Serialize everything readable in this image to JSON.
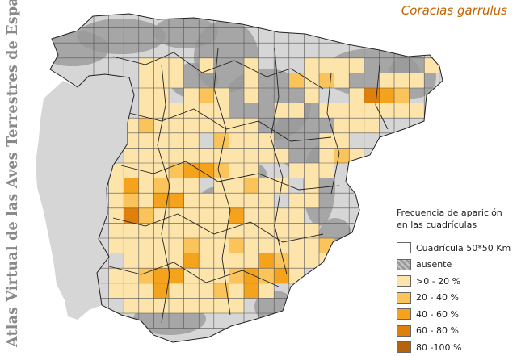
{
  "side_title": "Atlas Virtual de las Aves Terrestres de España",
  "species": "Coracias garrulus",
  "species_color": "#c46200",
  "legend": {
    "title_line1": "Frecuencia de aparición",
    "title_line2": "en las cuadrículas",
    "items": [
      {
        "label": "Cuadrícula 50*50 Km",
        "color": "#ffffff",
        "icon": "empty-square"
      },
      {
        "label": "ausente",
        "color": "#9a9a9a",
        "icon": "gray-texture"
      },
      {
        "label": ">0 - 20 %",
        "color": "#fde4aa",
        "icon": "swatch"
      },
      {
        "label": "20 - 40 %",
        "color": "#fbc45a",
        "icon": "swatch"
      },
      {
        "label": "40 - 60 %",
        "color": "#f5a31c",
        "icon": "swatch"
      },
      {
        "label": "60 - 80 %",
        "color": "#e0800c",
        "icon": "swatch"
      },
      {
        "label": "80 -100 %",
        "color": "#b5640a",
        "icon": "swatch"
      }
    ]
  },
  "map": {
    "land_color": "#d6d6d6",
    "relief_color": "#9a9a9a",
    "grid_color": "#555555",
    "boundary_color": "#222222"
  }
}
